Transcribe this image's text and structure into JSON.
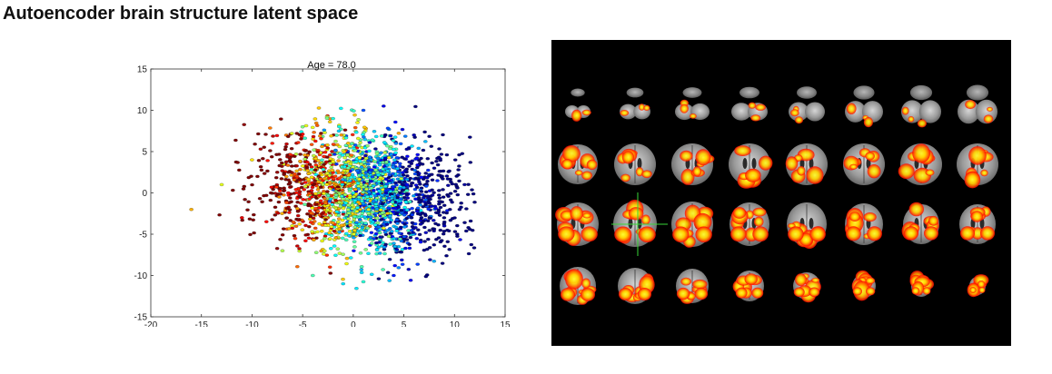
{
  "page": {
    "title": "Autoencoder brain structure latent space"
  },
  "chart_data": {
    "type": "scatter",
    "title": "Age = 78.0",
    "xlabel": "",
    "ylabel": "",
    "xlim": [
      -20,
      15
    ],
    "ylim": [
      -15,
      15
    ],
    "xticks": [
      -20,
      -15,
      -10,
      -5,
      0,
      5,
      10,
      15
    ],
    "yticks": [
      -15,
      -10,
      -5,
      0,
      5,
      10,
      15
    ],
    "xtick_labels": [
      "-20",
      "-15",
      "-10",
      "-5",
      "0",
      "5",
      "10",
      "15"
    ],
    "ytick_labels": [
      "-15",
      "-10",
      "-5",
      "0",
      "5",
      "10",
      "15"
    ],
    "grid": false,
    "colormap": "jet (color encodes age; young = dark blue, old = yellow/red)",
    "colormap_stops": [
      "#00007f",
      "#0000ff",
      "#007fff",
      "#00ffff",
      "#7fff7f",
      "#ffff00",
      "#ff7f00",
      "#ff0000",
      "#7f0000"
    ],
    "cloud": {
      "description": "Approximately 3000 points forming a dense elliptical cloud centered near (1, 0); older ages (warm colors) concentrated on the left, younger ages (dark blue) on the right",
      "center": [
        1.0,
        0.0
      ],
      "spread": [
        4.5,
        3.6
      ],
      "tilt": -0.15,
      "x_range": [
        -16,
        12
      ],
      "y_range": [
        -12,
        10.5
      ]
    },
    "sample_points": [
      {
        "x": -16,
        "y": -2,
        "c": 0.7
      },
      {
        "x": -13,
        "y": 1,
        "c": 0.6
      },
      {
        "x": -11,
        "y": -3,
        "c": 0.9
      },
      {
        "x": -10,
        "y": 4,
        "c": 0.65
      },
      {
        "x": -8,
        "y": 6,
        "c": 0.85
      },
      {
        "x": -7,
        "y": -7,
        "c": 0.55
      },
      {
        "x": -5,
        "y": 8,
        "c": 0.5
      },
      {
        "x": -4,
        "y": -10,
        "c": 0.45
      },
      {
        "x": -2,
        "y": 9,
        "c": 0.4
      },
      {
        "x": -1,
        "y": -11,
        "c": 0.35
      },
      {
        "x": 1,
        "y": 10,
        "c": 0.2
      },
      {
        "x": 3,
        "y": 10.5,
        "c": 0.1
      },
      {
        "x": 4,
        "y": -10,
        "c": 0.15
      },
      {
        "x": 6,
        "y": 7,
        "c": 0.05
      },
      {
        "x": 8,
        "y": 3,
        "c": 0.02
      },
      {
        "x": 9,
        "y": -4,
        "c": 0.05
      },
      {
        "x": 10.5,
        "y": -2,
        "c": 0.0
      },
      {
        "x": 11,
        "y": 1,
        "c": 0.03
      },
      {
        "x": 0,
        "y": 0,
        "c": 0.4
      },
      {
        "x": 2,
        "y": -1,
        "c": 0.25
      },
      {
        "x": -3,
        "y": 1,
        "c": 0.55
      }
    ]
  },
  "brain_panel": {
    "rows": 4,
    "columns": 8,
    "background": "#000000",
    "overlay_colors": [
      "#ff0000",
      "#ff6a00",
      "#ffd400",
      "#ffff33"
    ],
    "crosshair_color": "#38d638"
  }
}
